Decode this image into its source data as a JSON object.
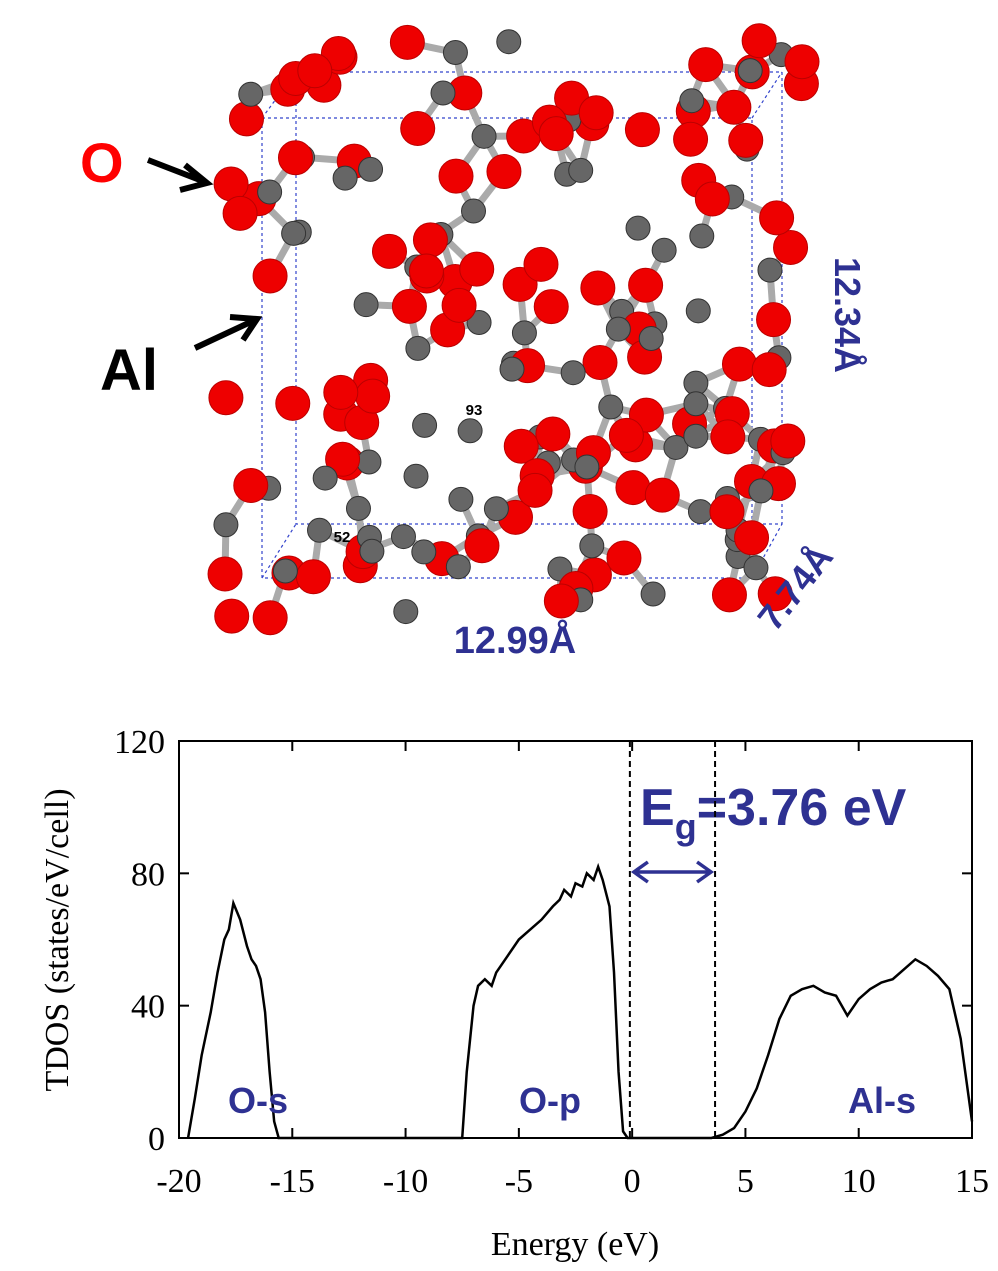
{
  "structure": {
    "atom_labels": [
      "O",
      "Al"
    ],
    "atom_ids": [
      "93",
      "52"
    ],
    "dimensions": [
      "12.34Å",
      "7.74Å",
      "12.99Å"
    ]
  },
  "chart_data": {
    "type": "line",
    "x": [
      -19.6,
      -19.3,
      -19.0,
      -18.6,
      -18.3,
      -18.0,
      -17.8,
      -17.6,
      -17.3,
      -17.0,
      -16.8,
      -16.6,
      -16.4,
      -16.2,
      -16.0,
      -15.8,
      -15.6,
      -7.5,
      -7.3,
      -7.0,
      -6.8,
      -6.5,
      -6.2,
      -6.0,
      -5.5,
      -5.0,
      -4.5,
      -4.0,
      -3.5,
      -3.2,
      -3.0,
      -2.7,
      -2.5,
      -2.2,
      -2.0,
      -1.7,
      -1.5,
      -1.3,
      -1.0,
      -0.8,
      -0.6,
      -0.4,
      -0.2,
      3.5,
      4.0,
      4.5,
      5.0,
      5.5,
      6.0,
      6.5,
      7.0,
      7.5,
      8.0,
      8.5,
      9.0,
      9.5,
      10.0,
      10.5,
      11.0,
      11.5,
      12.0,
      12.5,
      13.0,
      13.5,
      14.0,
      14.5,
      15.0
    ],
    "values": [
      0,
      12,
      25,
      38,
      50,
      60,
      63,
      71,
      66,
      58,
      54,
      52,
      48,
      38,
      20,
      5,
      0,
      0,
      20,
      40,
      46,
      48,
      46,
      50,
      55,
      60,
      63,
      66,
      70,
      72,
      75,
      73,
      77,
      76,
      80,
      78,
      82,
      78,
      70,
      50,
      20,
      2,
      0,
      0,
      1,
      3,
      8,
      15,
      25,
      36,
      43,
      45,
      46,
      44,
      43,
      37,
      42,
      45,
      47,
      48,
      51,
      54,
      52,
      49,
      45,
      30,
      5
    ],
    "color": "#000000",
    "xlim": [
      -20,
      15
    ],
    "xticks": [
      -20,
      -15,
      -10,
      -5,
      0,
      5,
      10,
      15
    ],
    "ylim": [
      0,
      120
    ],
    "yticks": [
      0,
      40,
      80,
      120
    ],
    "xlabel": "Energy (eV)",
    "ylabel": "TDOS (states/eV/cell)",
    "band_labels": [
      "O-s",
      "O-p",
      "Al-s"
    ],
    "gap_edges": [
      -0.1,
      3.66
    ],
    "gap_label": [
      "E",
      "g",
      "=3.76 eV"
    ]
  }
}
